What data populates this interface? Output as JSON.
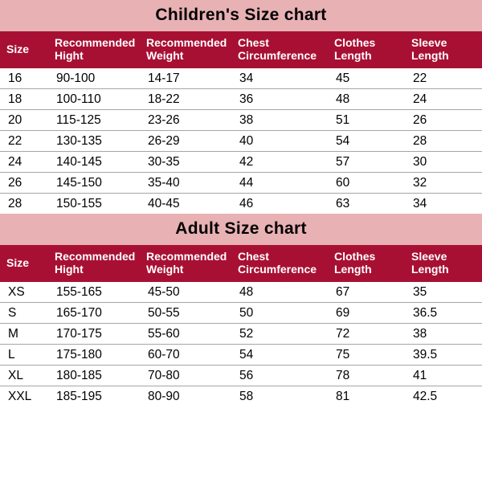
{
  "colors": {
    "title_band_bg": "#e8b1b4",
    "title_text": "#000000",
    "header_row_bg": "#a81033",
    "header_text": "#ffffff",
    "body_bg": "#ffffff",
    "row_border": "rgba(0,0,0,0.35)",
    "cell_text": "#000000"
  },
  "typography": {
    "title_fontsize": 21,
    "title_weight": 900,
    "header_fontsize": 14,
    "cell_fontsize": 15.5
  },
  "columns": [
    "Size",
    "Recommended Hight",
    "Recommended Weight",
    "Chest Circumference",
    "Clothes Length",
    "Sleeve Length"
  ],
  "column_widths_pct": [
    10,
    19,
    19,
    20,
    16,
    16
  ],
  "children": {
    "title": "Children's Size chart",
    "rows": [
      [
        "16",
        "90-100",
        "14-17",
        "34",
        "45",
        "22"
      ],
      [
        "18",
        "100-110",
        "18-22",
        "36",
        "48",
        "24"
      ],
      [
        "20",
        "115-125",
        "23-26",
        "38",
        "51",
        "26"
      ],
      [
        "22",
        "130-135",
        "26-29",
        "40",
        "54",
        "28"
      ],
      [
        "24",
        "140-145",
        "30-35",
        "42",
        "57",
        "30"
      ],
      [
        "26",
        "145-150",
        "35-40",
        "44",
        "60",
        "32"
      ],
      [
        "28",
        "150-155",
        "40-45",
        "46",
        "63",
        "34"
      ]
    ]
  },
  "adult": {
    "title": "Adult Size chart",
    "rows": [
      [
        "XS",
        "155-165",
        "45-50",
        "48",
        "67",
        "35"
      ],
      [
        "S",
        "165-170",
        "50-55",
        "50",
        "69",
        "36.5"
      ],
      [
        "M",
        "170-175",
        "55-60",
        "52",
        "72",
        "38"
      ],
      [
        "L",
        "175-180",
        "60-70",
        "54",
        "75",
        "39.5"
      ],
      [
        "XL",
        "180-185",
        "70-80",
        "56",
        "78",
        "41"
      ],
      [
        "XXL",
        "185-195",
        "80-90",
        "58",
        "81",
        "42.5"
      ]
    ]
  }
}
